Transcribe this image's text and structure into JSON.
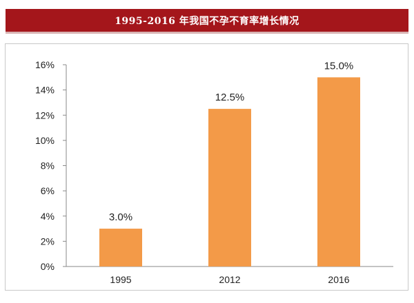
{
  "header": {
    "title": "1995-2016 年我国不孕不育率增长情况"
  },
  "chart_data": {
    "type": "bar",
    "title": "1995-2016 年我国不孕不育率增长情况",
    "categories": [
      "1995",
      "2012",
      "2016"
    ],
    "values": [
      3.0,
      12.5,
      15.0
    ],
    "data_labels": [
      "3.0%",
      "12.5%",
      "15.0%"
    ],
    "ylim": [
      0,
      16
    ],
    "yticks": [
      0,
      2,
      4,
      6,
      8,
      10,
      12,
      14,
      16
    ],
    "ytick_labels": [
      "0%",
      "2%",
      "4%",
      "6%",
      "8%",
      "10%",
      "12%",
      "14%",
      "16%"
    ],
    "xlabel": "",
    "ylabel": "",
    "grid": false,
    "legend": "none",
    "bar_color": "#f39a48"
  }
}
